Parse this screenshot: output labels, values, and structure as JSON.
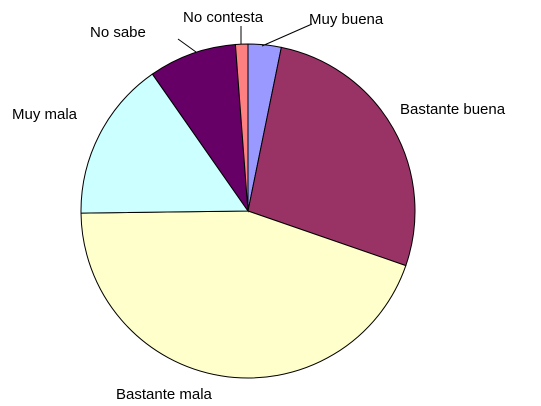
{
  "chart_data": {
    "type": "pie",
    "title": "",
    "slices": [
      {
        "label": "Muy buena",
        "value": 3.2,
        "color": "#9999FF"
      },
      {
        "label": "Bastante buena",
        "value": 27.1,
        "color": "#993366"
      },
      {
        "label": "Bastante mala",
        "value": 44.5,
        "color": "#FFFFCC"
      },
      {
        "label": "Muy mala",
        "value": 15.5,
        "color": "#CCFFFF"
      },
      {
        "label": "No sabe",
        "value": 8.5,
        "color": "#660066"
      },
      {
        "label": "No contesta",
        "value": 1.2,
        "color": "#FF8080"
      }
    ],
    "legend": "none",
    "start": "top",
    "direction": "clockwise"
  }
}
